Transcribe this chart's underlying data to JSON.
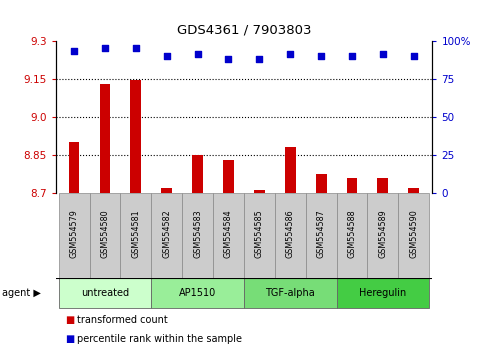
{
  "title": "GDS4361 / 7903803",
  "samples": [
    "GSM554579",
    "GSM554580",
    "GSM554581",
    "GSM554582",
    "GSM554583",
    "GSM554584",
    "GSM554585",
    "GSM554586",
    "GSM554587",
    "GSM554588",
    "GSM554589",
    "GSM554590"
  ],
  "transformed_counts": [
    8.9,
    9.13,
    9.145,
    8.72,
    8.85,
    8.83,
    8.71,
    8.88,
    8.775,
    8.76,
    8.76,
    8.72
  ],
  "percentile_ranks": [
    93,
    95,
    95,
    90,
    91,
    88,
    88,
    91,
    90,
    90,
    91,
    90
  ],
  "ylim_left": [
    8.7,
    9.3
  ],
  "yticks_left": [
    8.7,
    8.85,
    9.0,
    9.15,
    9.3
  ],
  "ylim_right": [
    0,
    100
  ],
  "yticks_right": [
    0,
    25,
    50,
    75,
    100
  ],
  "yticklabels_right": [
    "0",
    "25",
    "50",
    "75",
    "100%"
  ],
  "bar_color": "#cc0000",
  "dot_color": "#0000cc",
  "bar_bottom": 8.7,
  "agents": [
    {
      "label": "untreated",
      "indices": [
        0,
        1,
        2
      ],
      "color": "#ccffcc"
    },
    {
      "label": "AP1510",
      "indices": [
        3,
        4,
        5
      ],
      "color": "#99ee99"
    },
    {
      "label": "TGF-alpha",
      "indices": [
        6,
        7,
        8
      ],
      "color": "#77dd77"
    },
    {
      "label": "Heregulin",
      "indices": [
        9,
        10,
        11
      ],
      "color": "#44cc44"
    }
  ],
  "left_tick_color": "#cc0000",
  "right_tick_color": "#0000cc",
  "sample_box_color": "#cccccc",
  "figsize": [
    4.83,
    3.54
  ],
  "dpi": 100
}
